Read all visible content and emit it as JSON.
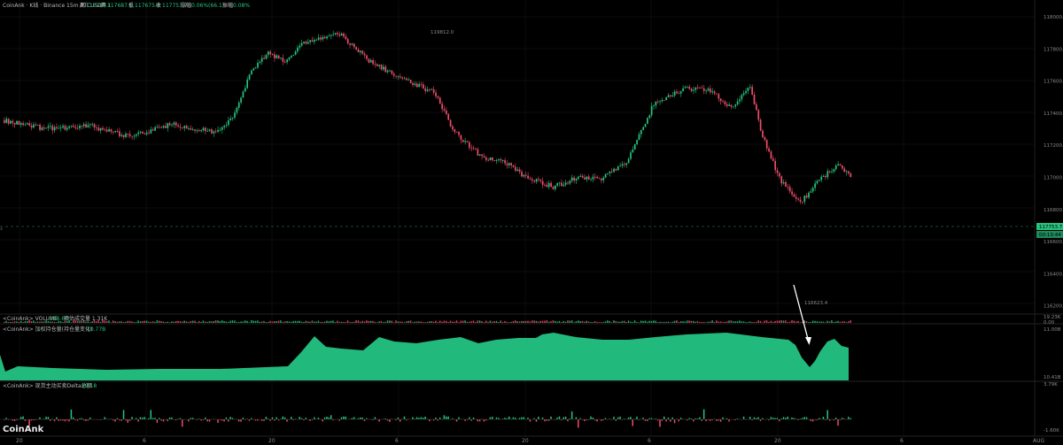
{
  "header": {
    "symbol_label": "CoinAnk · K线 · Binance 15m BTCUSDT",
    "open_label": "开",
    "open_value": "117687.6",
    "high_label": "高",
    "high_value": "117764.1",
    "low_label": "低",
    "low_value": "117675.8",
    "close_label": "收",
    "close_value": "117753.7",
    "change_label": "涨幅",
    "change_value": "0.06%(66.1)",
    "amplitude_label": "振幅",
    "amplitude_value": "0.08%"
  },
  "price_panel": {
    "y_ticks": [
      "118000.0",
      "117800.0",
      "117600.0",
      "117400.0",
      "117200.0",
      "117000.0",
      "116800.0",
      "116600.0",
      "116400.0",
      "116200.0"
    ],
    "current_price_tag": "117753.7",
    "countdown_tag": "00:13:44",
    "high_annotation": "119812.0",
    "low_annotation": "116623.4"
  },
  "volume_panel": {
    "title": "<CoinAnk> VOLUME",
    "value": "106.60",
    "extra_label": "预估成交量 1.31K",
    "y_top": "19.23K",
    "y_bottom": "0.00"
  },
  "oi_panel": {
    "title": "<CoinAnk> 加权持仓量(持仓量变化)",
    "value": "10.77B",
    "y_top": "11.00B",
    "y_bottom": "10.41B"
  },
  "delta_panel": {
    "title": "<CoinAnk> 现货主动买卖Delta总额",
    "value": "29.18",
    "y_top": "3.79K",
    "y_bottom": "-1.60K"
  },
  "x_axis": {
    "labels": [
      "20",
      "6",
      "20",
      "6",
      "20",
      "6",
      "20",
      "6"
    ],
    "right_label": "AUG"
  },
  "watermark": "CoinAnk",
  "colors": {
    "up": "#26c27e",
    "down": "#ee4c68",
    "oi_fill": "#22b97c",
    "grid": "#161616",
    "tag_bg": "#26c27e"
  },
  "chart_data": {
    "type": "candlestick",
    "timeframe": "15m",
    "ylim": [
      116200,
      118000
    ],
    "anchors": [
      {
        "i": 0,
        "p": 117350
      },
      {
        "i": 20,
        "p": 117300
      },
      {
        "i": 40,
        "p": 117320
      },
      {
        "i": 60,
        "p": 117250
      },
      {
        "i": 80,
        "p": 117330
      },
      {
        "i": 100,
        "p": 117280
      },
      {
        "i": 108,
        "p": 117350
      },
      {
        "i": 118,
        "p": 117640
      },
      {
        "i": 126,
        "p": 117760
      },
      {
        "i": 134,
        "p": 117700
      },
      {
        "i": 143,
        "p": 117820
      },
      {
        "i": 160,
        "p": 117870
      },
      {
        "i": 175,
        "p": 117700
      },
      {
        "i": 190,
        "p": 117600
      },
      {
        "i": 205,
        "p": 117520
      },
      {
        "i": 215,
        "p": 117280
      },
      {
        "i": 228,
        "p": 117130
      },
      {
        "i": 240,
        "p": 117090
      },
      {
        "i": 250,
        "p": 117000
      },
      {
        "i": 262,
        "p": 116950
      },
      {
        "i": 275,
        "p": 117010
      },
      {
        "i": 285,
        "p": 117000
      },
      {
        "i": 297,
        "p": 117090
      },
      {
        "i": 310,
        "p": 117450
      },
      {
        "i": 325,
        "p": 117540
      },
      {
        "i": 337,
        "p": 117530
      },
      {
        "i": 347,
        "p": 117420
      },
      {
        "i": 356,
        "p": 117560
      },
      {
        "i": 362,
        "p": 117250
      },
      {
        "i": 370,
        "p": 117000
      },
      {
        "i": 380,
        "p": 116850
      },
      {
        "i": 388,
        "p": 116980
      },
      {
        "i": 398,
        "p": 117080
      },
      {
        "i": 404,
        "p": 117010
      }
    ],
    "notable_high": 119812.0,
    "notable_low": 116623.4,
    "last_price": 117753.7
  }
}
